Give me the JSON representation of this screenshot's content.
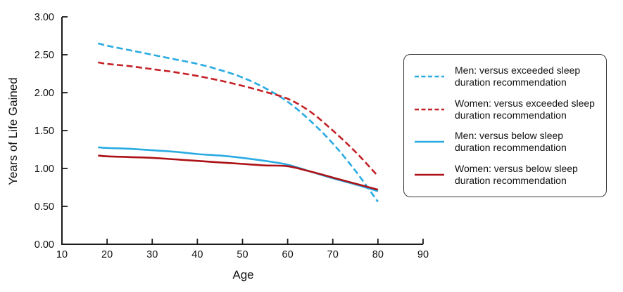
{
  "chart_data": {
    "type": "line",
    "title": "",
    "xlabel": "Age",
    "ylabel": "Years of Life Gained",
    "xlim": [
      10,
      90
    ],
    "ylim": [
      0,
      3
    ],
    "grid": false,
    "legend_position": "right",
    "x_ticks": [
      10,
      20,
      30,
      40,
      50,
      60,
      70,
      80,
      90
    ],
    "y_tick_values": [
      0,
      0.5,
      1,
      1.5,
      2,
      2.5,
      3
    ],
    "y_tick_labels": [
      "0.00",
      "0.50",
      "1.00",
      "1.50",
      "2.00",
      "2.50",
      "3.00"
    ],
    "x": [
      18,
      20,
      25,
      30,
      35,
      40,
      45,
      50,
      55,
      60,
      65,
      70,
      75,
      80
    ],
    "series": [
      {
        "name": "men-exceeded",
        "label": "Men: versus exceeded sleep\nduration recommendation",
        "color": "#29ABE2",
        "dash": true,
        "values": [
          2.65,
          2.62,
          2.56,
          2.5,
          2.44,
          2.38,
          2.3,
          2.2,
          2.06,
          1.88,
          1.63,
          1.33,
          0.97,
          0.56
        ]
      },
      {
        "name": "women-exceeded",
        "label": "Women: versus exceeded sleep\nduration recommendation",
        "color": "#C42126",
        "dash": true,
        "values": [
          2.4,
          2.38,
          2.35,
          2.31,
          2.27,
          2.22,
          2.16,
          2.09,
          2.01,
          1.92,
          1.75,
          1.5,
          1.22,
          0.9
        ]
      },
      {
        "name": "men-below",
        "label": "Men: versus below sleep\nduration recommendation",
        "color": "#29ABE2",
        "dash": false,
        "values": [
          1.28,
          1.27,
          1.26,
          1.24,
          1.22,
          1.19,
          1.17,
          1.14,
          1.1,
          1.05,
          0.96,
          0.87,
          0.79,
          0.7
        ]
      },
      {
        "name": "women-below",
        "label": "Women: versus below sleep\nduration recommendation",
        "color": "#AC1116",
        "dash": false,
        "values": [
          1.17,
          1.16,
          1.15,
          1.14,
          1.12,
          1.1,
          1.08,
          1.06,
          1.04,
          1.03,
          0.96,
          0.88,
          0.8,
          0.72
        ]
      }
    ]
  }
}
